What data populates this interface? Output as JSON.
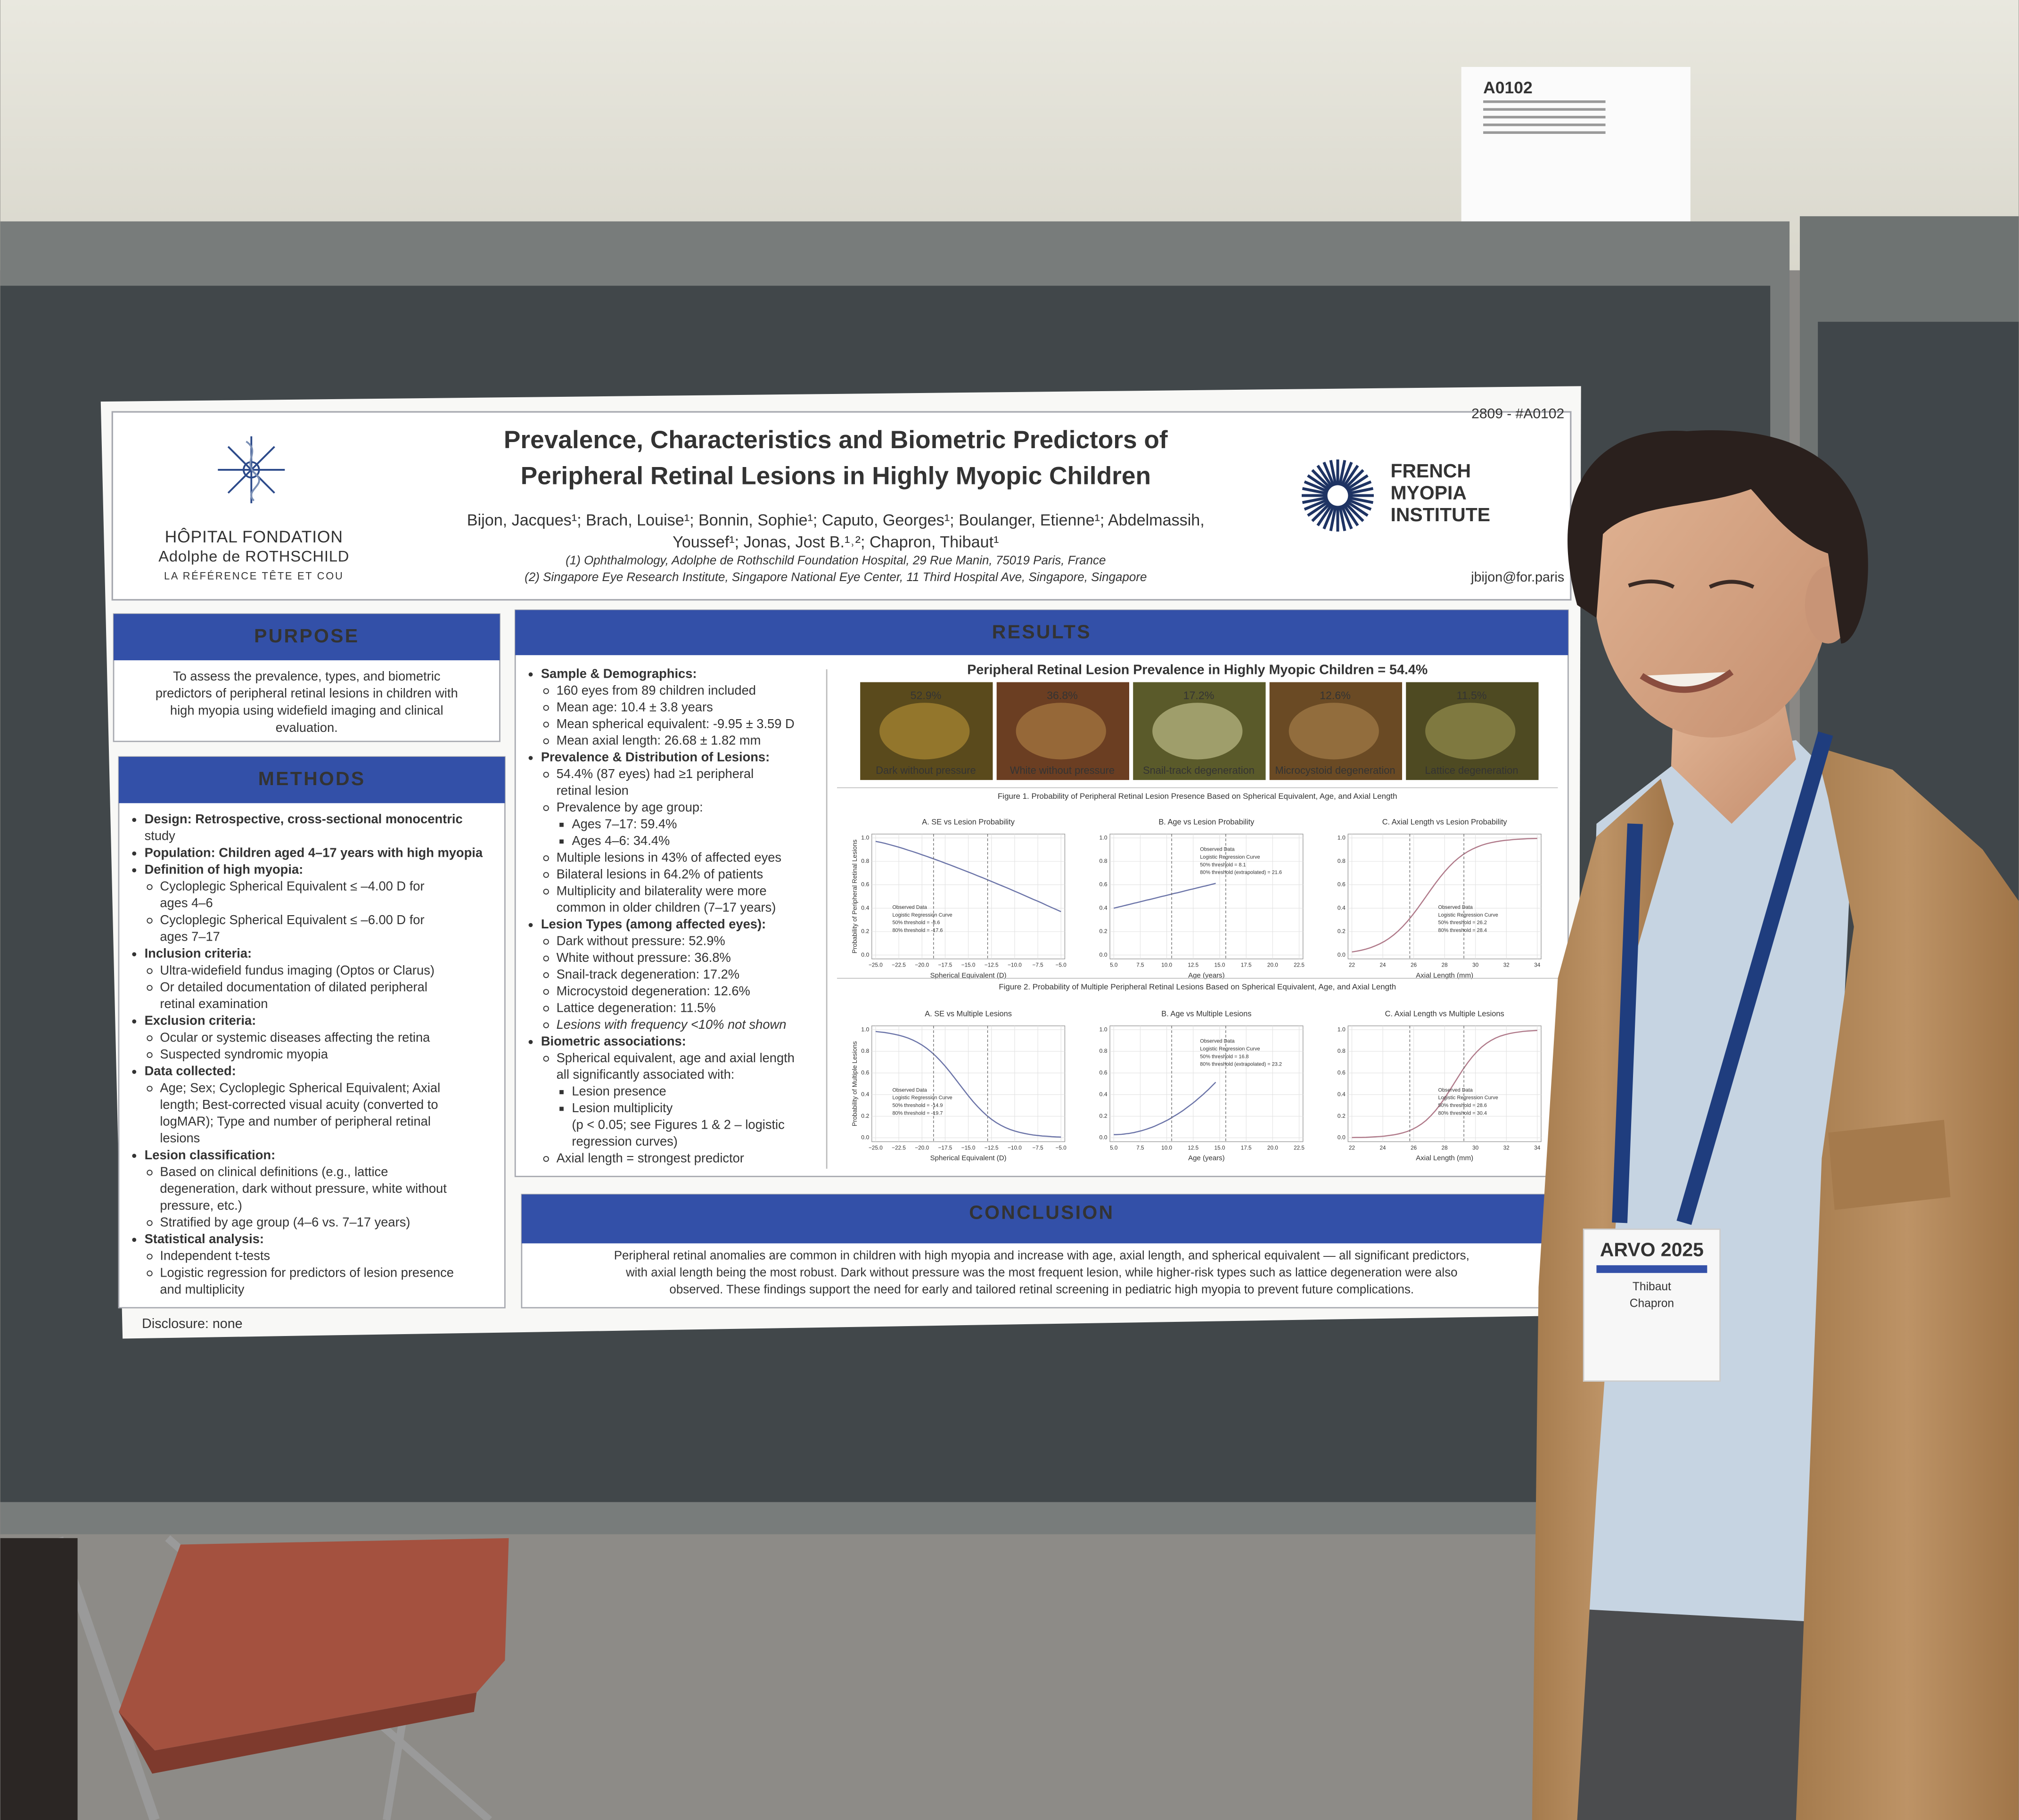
{
  "sign": {
    "code": "A0102"
  },
  "poster": {
    "id": "2809 - #A0102",
    "email": "jbijon@for.paris",
    "left_logo": [
      "HÔPITAL FONDATION",
      "Adolphe de ROTHSCHILD",
      "LA RÉFÉRENCE TÊTE ET COU"
    ],
    "right_logo": [
      "FRENCH",
      "MYOPIA",
      "INSTITUTE"
    ],
    "title": [
      "Prevalence, Characteristics and Biometric Predictors of",
      "Peripheral Retinal Lesions in Highly Myopic Children"
    ],
    "authors": [
      "Bijon, Jacques¹; Brach, Louise¹; Bonnin, Sophie¹; Caputo, Georges¹; Boulanger, Etienne¹; Abdelmassih,",
      "Youssef¹; Jonas, Jost B.¹˒²; Chapron, Thibaut¹"
    ],
    "affiliations": [
      "(1) Ophthalmology, Adolphe de Rothschild Foundation Hospital, 29 Rue Manin, 75019 Paris, France",
      "(2) Singapore Eye Research Institute, Singapore National Eye Center, 11 Third Hospital Ave, Singapore, Singapore"
    ],
    "purpose": {
      "heading": "PURPOSE",
      "lines": [
        "To assess the prevalence, types, and biometric",
        "predictors of peripheral retinal lesions in children with",
        "high myopia using widefield imaging and clinical",
        "evaluation."
      ]
    },
    "methods": {
      "heading": "METHODS",
      "lines": [
        "Design: Retrospective, cross-sectional monocentric",
        "study",
        "Population: Children aged 4–17 years with high myopia",
        "Definition of high myopia:",
        "Cycloplegic Spherical Equivalent ≤ –4.00 D for",
        "ages 4–6",
        "Cycloplegic Spherical Equivalent ≤ –6.00 D for",
        "ages 7–17",
        "Inclusion criteria:",
        "Ultra-widefield fundus imaging (Optos or Clarus)",
        "Or detailed documentation of dilated peripheral",
        "retinal examination",
        "Exclusion criteria:",
        "Ocular or systemic diseases affecting the retina",
        "Suspected syndromic myopia",
        "Data collected:",
        "Age; Sex; Cycloplegic Spherical Equivalent; Axial",
        "length; Best-corrected visual acuity (converted to",
        "logMAR); Type and number of peripheral retinal",
        "lesions",
        "Lesion classification:",
        "Based on clinical definitions (e.g., lattice",
        "degeneration, dark without pressure, white without",
        "pressure, etc.)",
        "Stratified by age group (4–6 vs. 7–17 years)",
        "Statistical analysis:",
        "Independent t-tests",
        "Logistic regression for predictors of lesion presence",
        "and multiplicity"
      ]
    },
    "results": {
      "heading": "RESULTS",
      "lines": [
        "Sample & Demographics:",
        "160 eyes from 89 children included",
        "Mean age: 10.4 ± 3.8 years",
        "Mean spherical equivalent: -9.95 ± 3.59 D",
        "Mean axial length: 26.68 ± 1.82 mm",
        "Prevalence & Distribution of Lesions:",
        "54.4% (87 eyes) had ≥1 peripheral",
        "retinal lesion",
        "Prevalence by age group:",
        "Ages 7–17: 59.4%",
        "Ages 4–6: 34.4%",
        "Multiple lesions in 43% of affected eyes",
        "Bilateral lesions in 64.2% of patients",
        "Multiplicity and bilaterality were more",
        "common in older children (7–17 years)",
        "Lesion Types (among affected eyes):",
        "Dark without pressure: 52.9%",
        "White without pressure: 36.8%",
        "Snail-track degeneration: 17.2%",
        "Microcystoid degeneration: 12.6%",
        "Lattice degeneration: 11.5%",
        "Lesions with frequency <10% not shown",
        "Biometric associations:",
        "Spherical equivalent, age and axial length",
        "all significantly associated with:",
        "Lesion presence",
        "Lesion multiplicity",
        "(p < 0.05; see Figures 1 & 2 – logistic",
        "regression curves)",
        "Axial length = strongest predictor"
      ],
      "figure_title": "Peripheral Retinal Lesion Prevalence in Highly Myopic Children = 54.4%",
      "images": [
        {
          "pct": "52.9%",
          "label": "Dark without pressure"
        },
        {
          "pct": "36.8%",
          "label": "White without pressure"
        },
        {
          "pct": "17.2%",
          "label": "Snail-track degeneration"
        },
        {
          "pct": "12.6%",
          "label": "Microcystoid degeneration"
        },
        {
          "pct": "11.5%",
          "label": "Lattice degeneration"
        }
      ],
      "yticks": [
        "0.0",
        "0.2",
        "0.4",
        "0.6",
        "0.8",
        "1.0"
      ],
      "figures": [
        {
          "caption": "Figure 1. Probability of Peripheral Retinal Lesion Presence Based on Spherical Equivalent, Age, and Axial Length",
          "ylabel": "Probability of Peripheral Retinal Lesions",
          "panels": [
            {
              "title": "A. SE vs Lesion Probability",
              "xlabel": "Spherical Equivalent (D)",
              "xticks": [
                "−25.0",
                "−22.5",
                "−20.0",
                "−17.5",
                "−15.0",
                "−12.5",
                "−10.0",
                "−7.5",
                "−5.0"
              ],
              "legend": [
                "Observed Data",
                "Logistic Regression Curve",
                "50% threshold = -8.6",
                "80% threshold = -17.6"
              ]
            },
            {
              "title": "B. Age vs Lesion Probability",
              "xlabel": "Age (years)",
              "xticks": [
                "5.0",
                "7.5",
                "10.0",
                "12.5",
                "15.0",
                "17.5",
                "20.0",
                "22.5"
              ],
              "legend": [
                "Observed Data",
                "Logistic Regression Curve",
                "50% threshold = 8.1",
                "80% threshold (extrapolated) = 21.6"
              ]
            },
            {
              "title": "C. Axial Length vs Lesion Probability",
              "xlabel": "Axial Length (mm)",
              "xticks": [
                "22",
                "24",
                "26",
                "28",
                "30",
                "32",
                "34"
              ],
              "legend": [
                "Observed Data",
                "Logistic Regression Curve",
                "50% threshold = 26.2",
                "80% threshold = 28.4"
              ]
            }
          ]
        },
        {
          "caption": "Figure 2. Probability of Multiple Peripheral Retinal Lesions Based on Spherical Equivalent, Age, and Axial Length",
          "ylabel": "Probability of Multiple Lesions",
          "panels": [
            {
              "title": "A. SE vs Multiple Lesions",
              "xlabel": "Spherical Equivalent (D)",
              "xticks": [
                "−25.0",
                "−22.5",
                "−20.0",
                "−17.5",
                "−15.0",
                "−12.5",
                "−10.0",
                "−7.5",
                "−5.0"
              ],
              "legend": [
                "Observed Data",
                "Logistic Regression Curve",
                "50% threshold = -14.9",
                "80% threshold = -19.7"
              ]
            },
            {
              "title": "B. Age vs Multiple Lesions",
              "xlabel": "Age (years)",
              "xticks": [
                "5.0",
                "7.5",
                "10.0",
                "12.5",
                "15.0",
                "17.5",
                "20.0",
                "22.5"
              ],
              "legend": [
                "Observed Data",
                "Logistic Regression Curve",
                "50% threshold = 16.8",
                "80% threshold (extrapolated) = 23.2"
              ]
            },
            {
              "title": "C. Axial Length vs Multiple Lesions",
              "xlabel": "Axial Length (mm)",
              "xticks": [
                "22",
                "24",
                "26",
                "28",
                "30",
                "32",
                "34"
              ],
              "legend": [
                "Observed Data",
                "Logistic Regression Curve",
                "50% threshold = 28.6",
                "80% threshold = 30.4"
              ]
            }
          ]
        }
      ]
    },
    "conclusion": {
      "heading": "CONCLUSION",
      "lines": [
        "Peripheral retinal anomalies are common in children with high myopia and increase with age, axial length, and spherical equivalent — all significant predictors,",
        "with axial length being the most robust. Dark without pressure was the most frequent lesion, while higher-risk types such as lattice degeneration were also",
        "observed. These findings support the need for early and tailored retinal screening in pediatric high myopia to prevent future complications."
      ]
    },
    "disclosure": "Disclosure: none"
  },
  "badge": {
    "event": "ARVO 2025",
    "first_name": "Thibaut",
    "last_name": "Chapron"
  }
}
